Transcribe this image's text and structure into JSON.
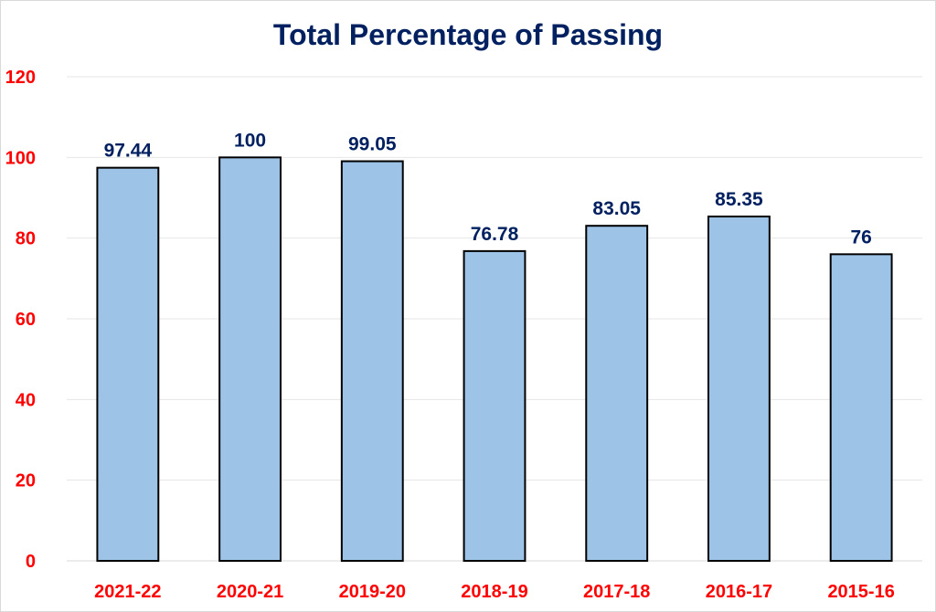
{
  "chart_data": {
    "type": "bar",
    "title": "Total Percentage of Passing",
    "xlabel": "",
    "ylabel": "",
    "categories": [
      "2021-22",
      "2020-21",
      "2019-20",
      "2018-19",
      "2017-18",
      "2016-17",
      "2015-16"
    ],
    "values": [
      97.44,
      100,
      99.05,
      76.78,
      83.05,
      85.35,
      76
    ],
    "data_labels": [
      "97.44",
      "100",
      "99.05",
      "76.78",
      "83.05",
      "85.35",
      "76"
    ],
    "ylim": [
      0,
      120
    ],
    "yticks": [
      0,
      20,
      40,
      60,
      80,
      100,
      120
    ],
    "ytick_labels": [
      "0",
      "20",
      "40",
      "60",
      "80",
      "100",
      "120"
    ],
    "grid": true,
    "legend": "none"
  },
  "colors": {
    "bar_fill": "#9dc3e6",
    "bar_stroke": "#000000",
    "title": "#002060",
    "data_label": "#002060",
    "tick_label": "#ff0000",
    "gridline": "#e6e6e6"
  }
}
